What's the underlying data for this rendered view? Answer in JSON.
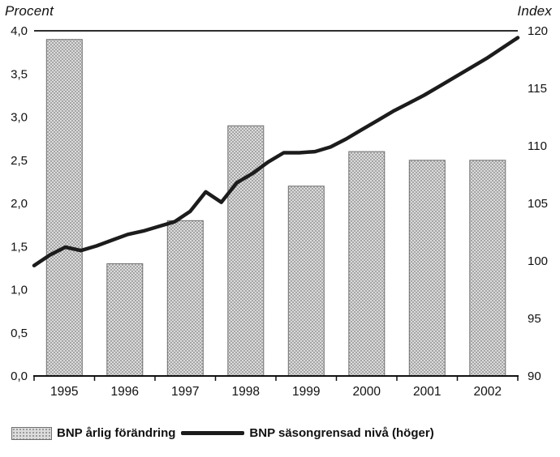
{
  "chart_data": {
    "type": "combo",
    "subtype": "bar+line",
    "categories": [
      "1995",
      "1996",
      "1997",
      "1998",
      "1999",
      "2000",
      "2001",
      "2002"
    ],
    "bar_series": {
      "name": "BNP årlig förändring",
      "axis": "left",
      "values": [
        3.9,
        1.3,
        1.8,
        2.9,
        2.2,
        2.6,
        2.5,
        2.5
      ]
    },
    "line_series": {
      "name": "BNP säsongrensad nivå (höger)",
      "axis": "right",
      "frequency": "quarterly",
      "values": [
        99.6,
        100.5,
        101.2,
        100.9,
        101.3,
        101.8,
        102.3,
        102.6,
        103.0,
        103.4,
        104.3,
        106.0,
        105.1,
        106.8,
        107.6,
        108.6,
        109.4,
        109.4,
        109.5,
        109.9,
        110.6,
        111.4,
        112.2,
        113.0,
        113.7,
        114.4,
        115.2,
        116.0,
        116.8,
        117.6,
        118.5,
        119.4
      ]
    },
    "left_axis": {
      "title": "Procent",
      "min": 0,
      "max": 4,
      "step": 0.5,
      "tick_labels": [
        "0,0",
        "0,5",
        "1,0",
        "1,5",
        "2,0",
        "2,5",
        "3,0",
        "3,5",
        "4,0"
      ]
    },
    "right_axis": {
      "title": "Index",
      "min": 90,
      "max": 120,
      "step": 5,
      "tick_labels": [
        "90",
        "95",
        "100",
        "105",
        "110",
        "115",
        "120"
      ]
    },
    "grid": false,
    "legend": [
      {
        "swatch": "hatched-bar",
        "label": "BNP  årlig förändring"
      },
      {
        "swatch": "thick-line",
        "label": "BNP säsongrensad nivå (höger)"
      }
    ],
    "colors": {
      "bar_fill": "#dcdcdc",
      "bar_dot": "#8e8e8e",
      "bar_stroke": "#6f6f6f",
      "line": "#1c1c1c",
      "axis": "#111111",
      "text": "#111111"
    }
  }
}
